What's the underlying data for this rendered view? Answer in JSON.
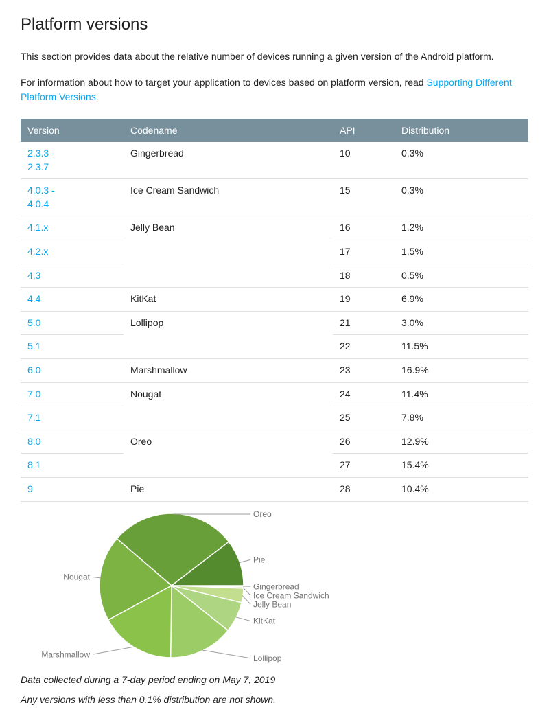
{
  "page": {
    "title": "Platform versions",
    "intro": "This section provides data about the relative number of devices running a given version of the Android platform.",
    "target_info_prefix": "For information about how to target your application to devices based on platform version, read ",
    "target_info_link": "Supporting Different Platform Versions",
    "target_info_suffix": ".",
    "footnote_line1": "Data collected during a 7-day period ending on May 7, 2019",
    "footnote_line2": "Any versions with less than 0.1% distribution are not shown."
  },
  "colors": {
    "link": "#03a9f4",
    "table_header_bg": "#78909c",
    "table_header_text": "#ffffff",
    "row_border": "#e0e0e0",
    "text": "#212121",
    "chart_label": "#757575",
    "leader_line": "#9e9e9e"
  },
  "table": {
    "headers": [
      "Version",
      "Codename",
      "API",
      "Distribution"
    ],
    "groups": [
      {
        "codename": "Gingerbread",
        "rows": [
          {
            "version": "2.3.3 -\n2.3.7",
            "api": "10",
            "dist": "0.3%"
          }
        ]
      },
      {
        "codename": "Ice Cream Sandwich",
        "rows": [
          {
            "version": "4.0.3 -\n4.0.4",
            "api": "15",
            "dist": "0.3%"
          }
        ]
      },
      {
        "codename": "Jelly Bean",
        "rows": [
          {
            "version": "4.1.x",
            "api": "16",
            "dist": "1.2%"
          },
          {
            "version": "4.2.x",
            "api": "17",
            "dist": "1.5%"
          },
          {
            "version": "4.3",
            "api": "18",
            "dist": "0.5%"
          }
        ]
      },
      {
        "codename": "KitKat",
        "rows": [
          {
            "version": "4.4",
            "api": "19",
            "dist": "6.9%"
          }
        ]
      },
      {
        "codename": "Lollipop",
        "rows": [
          {
            "version": "5.0",
            "api": "21",
            "dist": "3.0%"
          },
          {
            "version": "5.1",
            "api": "22",
            "dist": "11.5%"
          }
        ]
      },
      {
        "codename": "Marshmallow",
        "rows": [
          {
            "version": "6.0",
            "api": "23",
            "dist": "16.9%"
          }
        ]
      },
      {
        "codename": "Nougat",
        "rows": [
          {
            "version": "7.0",
            "api": "24",
            "dist": "11.4%"
          },
          {
            "version": "7.1",
            "api": "25",
            "dist": "7.8%"
          }
        ]
      },
      {
        "codename": "Oreo",
        "rows": [
          {
            "version": "8.0",
            "api": "26",
            "dist": "12.9%"
          },
          {
            "version": "8.1",
            "api": "27",
            "dist": "15.4%"
          }
        ]
      },
      {
        "codename": "Pie",
        "rows": [
          {
            "version": "9",
            "api": "28",
            "dist": "10.4%"
          }
        ]
      }
    ]
  },
  "chart_data": {
    "type": "pie",
    "title": "Android platform version distribution",
    "start_angle_deg": 0,
    "legend_position": "outside-labels",
    "slices": [
      {
        "label": "Gingerbread",
        "value": 0.3,
        "color": "#d4e8ad"
      },
      {
        "label": "Ice Cream Sandwich",
        "value": 0.3,
        "color": "#cde4a0"
      },
      {
        "label": "Jelly Bean",
        "value": 3.2,
        "color": "#c3de8e"
      },
      {
        "label": "KitKat",
        "value": 6.9,
        "color": "#aed581"
      },
      {
        "label": "Lollipop",
        "value": 14.5,
        "color": "#9ccc65"
      },
      {
        "label": "Marshmallow",
        "value": 16.9,
        "color": "#8bc34a"
      },
      {
        "label": "Nougat",
        "value": 19.2,
        "color": "#7cb342"
      },
      {
        "label": "Oreo",
        "value": 28.3,
        "color": "#689f38"
      },
      {
        "label": "Pie",
        "value": 10.4,
        "color": "#558b2f"
      }
    ]
  }
}
